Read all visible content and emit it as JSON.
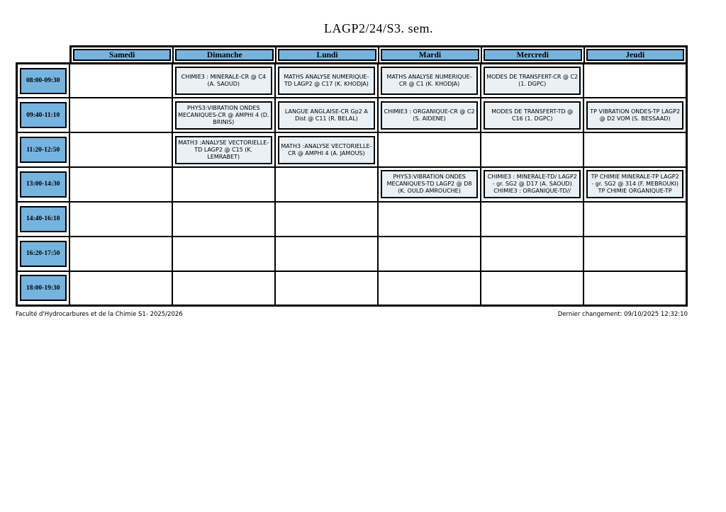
{
  "page": {
    "title": "LAGP2/24/S3. sem.",
    "footer_left": "Faculté d'Hydrocarbures et de la Chimie S1- 2025/2026",
    "footer_right": "Dernier changement: 09/10/2025 12:32:10"
  },
  "days": [
    "Samedi",
    "Dimanche",
    "Lundi",
    "Mardi",
    "Mercredi",
    "Jeudi"
  ],
  "times": [
    "08:00-09:30",
    "09:40-11:10",
    "11:20-12:50",
    "13:00-14:30",
    "14:40-16:10",
    "16:20-17:50",
    "18:00-19:30"
  ],
  "grid": [
    [
      "",
      "CHIMIE3 : MINERALE-CR @ C4 (A. SAOUD)",
      "MATHS ANALYSE NUMERIQUE-TD LAGP2 @ C17 (K. KHODJA)",
      "MATHS ANALYSE NUMERIQUE-CR @ C1 (K. KHODJA)",
      "MODES DE TRANSFERT-CR @ C2 (1. DGPC)",
      ""
    ],
    [
      "",
      "PHYS3:VIBRATION ONDES MECANIQUES-CR @ AMPHI 4 (D. BRINIS)",
      "LANGUE ANGLAISE-CR Gp2 A Dist @ C11 (R. BELAL)",
      "CHIMIE3 : ORGANIQUE-CR @ C2 (S. AIDENE)",
      "MODES DE TRANSFERT-TD @ C16 (1. DGPC)",
      "TP VIBRATION ONDES-TP LAGP2 @ D2 VOM (S. BESSAAD)"
    ],
    [
      "",
      "MATH3 :ANALYSE VECTORIELLE-TD LAGP2 @ C15 (K. LEMRABET)",
      "MATH3 :ANALYSE VECTORIELLE-CR @ AMPHI 4 (A. JAMOUS)",
      "",
      "",
      ""
    ],
    [
      "",
      "",
      "",
      "PHYS3:VIBRATION ONDES MECANIQUES-TD LAGP2 @ D8 (K. OULD AMROUCHE)",
      "CHIMIE3 : MINERALE-TD/ LAGP2 - gr. SG2 @ D17 (A. SAOUD) CHIMIE3 : ORGANIQUE-TD//",
      "TP CHIMIE MINERALE-TP LAGP2 - gr. SG2 @ 314 (F. MEBROUKI) TP CHIMIE ORGANIQUE-TP"
    ],
    [
      "",
      "",
      "",
      "",
      "",
      ""
    ],
    [
      "",
      "",
      "",
      "",
      "",
      ""
    ],
    [
      "",
      "",
      "",
      "",
      "",
      ""
    ]
  ],
  "colors": {
    "header_fill": "#76B4E0",
    "course_fill": "#E9F1F7"
  }
}
